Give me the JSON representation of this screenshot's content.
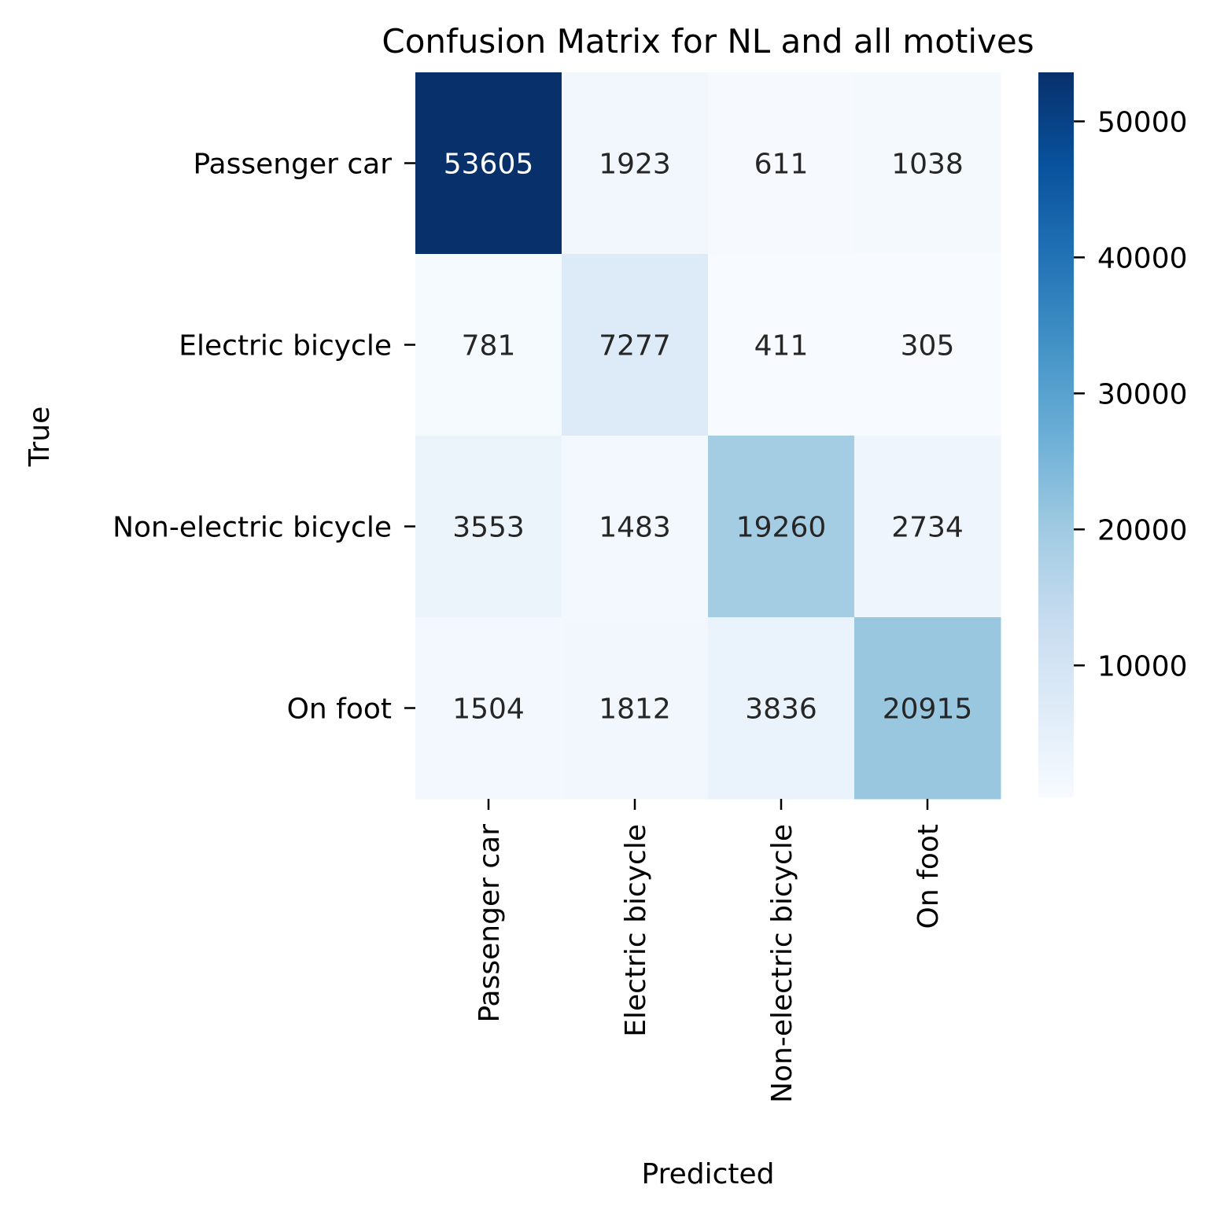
{
  "chart_data": {
    "type": "heatmap",
    "title": "Confusion Matrix for NL and all motives",
    "xlabel": "Predicted",
    "ylabel": "True",
    "x_categories": [
      "Passenger car",
      "Electric bicycle",
      "Non-electric bicycle",
      "On foot"
    ],
    "y_categories": [
      "Passenger car",
      "Electric bicycle",
      "Non-electric bicycle",
      "On foot"
    ],
    "values": [
      [
        53605,
        1923,
        611,
        1038
      ],
      [
        781,
        7277,
        411,
        305
      ],
      [
        3553,
        1483,
        19260,
        2734
      ],
      [
        1504,
        1812,
        3836,
        20915
      ]
    ],
    "colormap": "Blues",
    "colorbar": {
      "ticks": [
        10000,
        20000,
        30000,
        40000,
        50000
      ],
      "range": [
        305,
        53605
      ]
    },
    "colors": {
      "cmap_low": "#f7fbff",
      "cmap_high": "#08306b",
      "text_dark": "#262626",
      "text_light": "#ffffff"
    }
  }
}
